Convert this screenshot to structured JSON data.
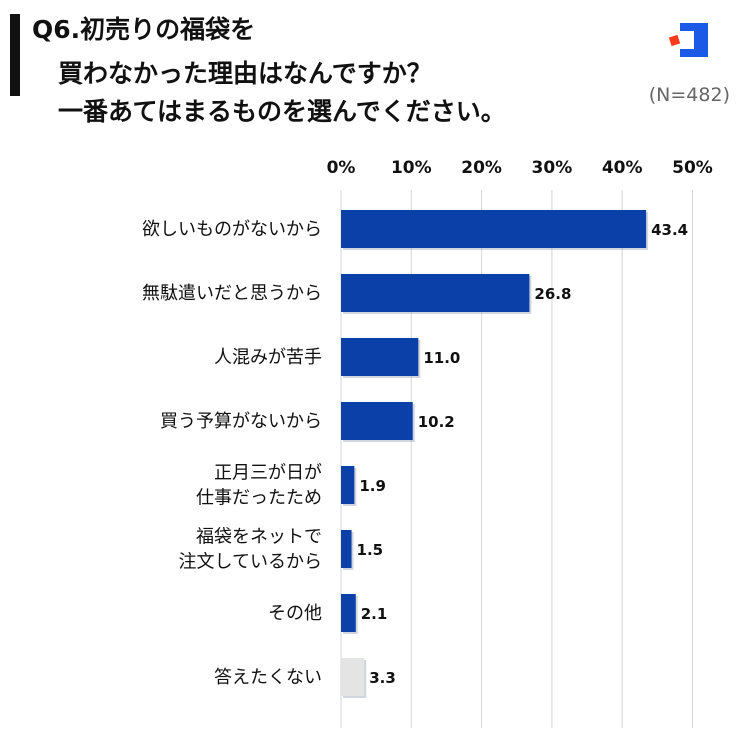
{
  "title": {
    "line1": "Q6.初売りの福袋を",
    "line2": "買わなかった理由はなんですか？",
    "line3": "一番あてはまるものを選んでください。"
  },
  "sample_size": "(N=482)",
  "logo": {
    "name": "brand-logo",
    "colors": [
      "#1a5ae6",
      "#ff3a1a"
    ]
  },
  "chart_data": {
    "type": "bar",
    "orientation": "horizontal",
    "categories": [
      [
        "欲しいものがないから"
      ],
      [
        "無駄遣いだと思うから"
      ],
      [
        "人混みが苦手"
      ],
      [
        "買う予算がないから"
      ],
      [
        "正月三が日が",
        "仕事だったため"
      ],
      [
        "福袋をネットで",
        "注文しているから"
      ],
      [
        "その他"
      ],
      [
        "答えたくない"
      ]
    ],
    "values": [
      43.4,
      26.8,
      11.0,
      10.2,
      1.9,
      1.5,
      2.1,
      3.3
    ],
    "value_labels": [
      "43.4",
      "26.8",
      "11.0",
      "10.2",
      "1.9",
      "1.5",
      "2.1",
      "3.3"
    ],
    "bar_colors": [
      "#0a40a8",
      "#0a40a8",
      "#0a40a8",
      "#0a40a8",
      "#0a40a8",
      "#0a40a8",
      "#0a40a8",
      "#e4e4e4"
    ],
    "x_ticks": [
      "0%",
      "10%",
      "20%",
      "30%",
      "40%",
      "50%"
    ],
    "xlim": [
      0,
      50
    ],
    "axis_position": "top",
    "grid": true
  }
}
